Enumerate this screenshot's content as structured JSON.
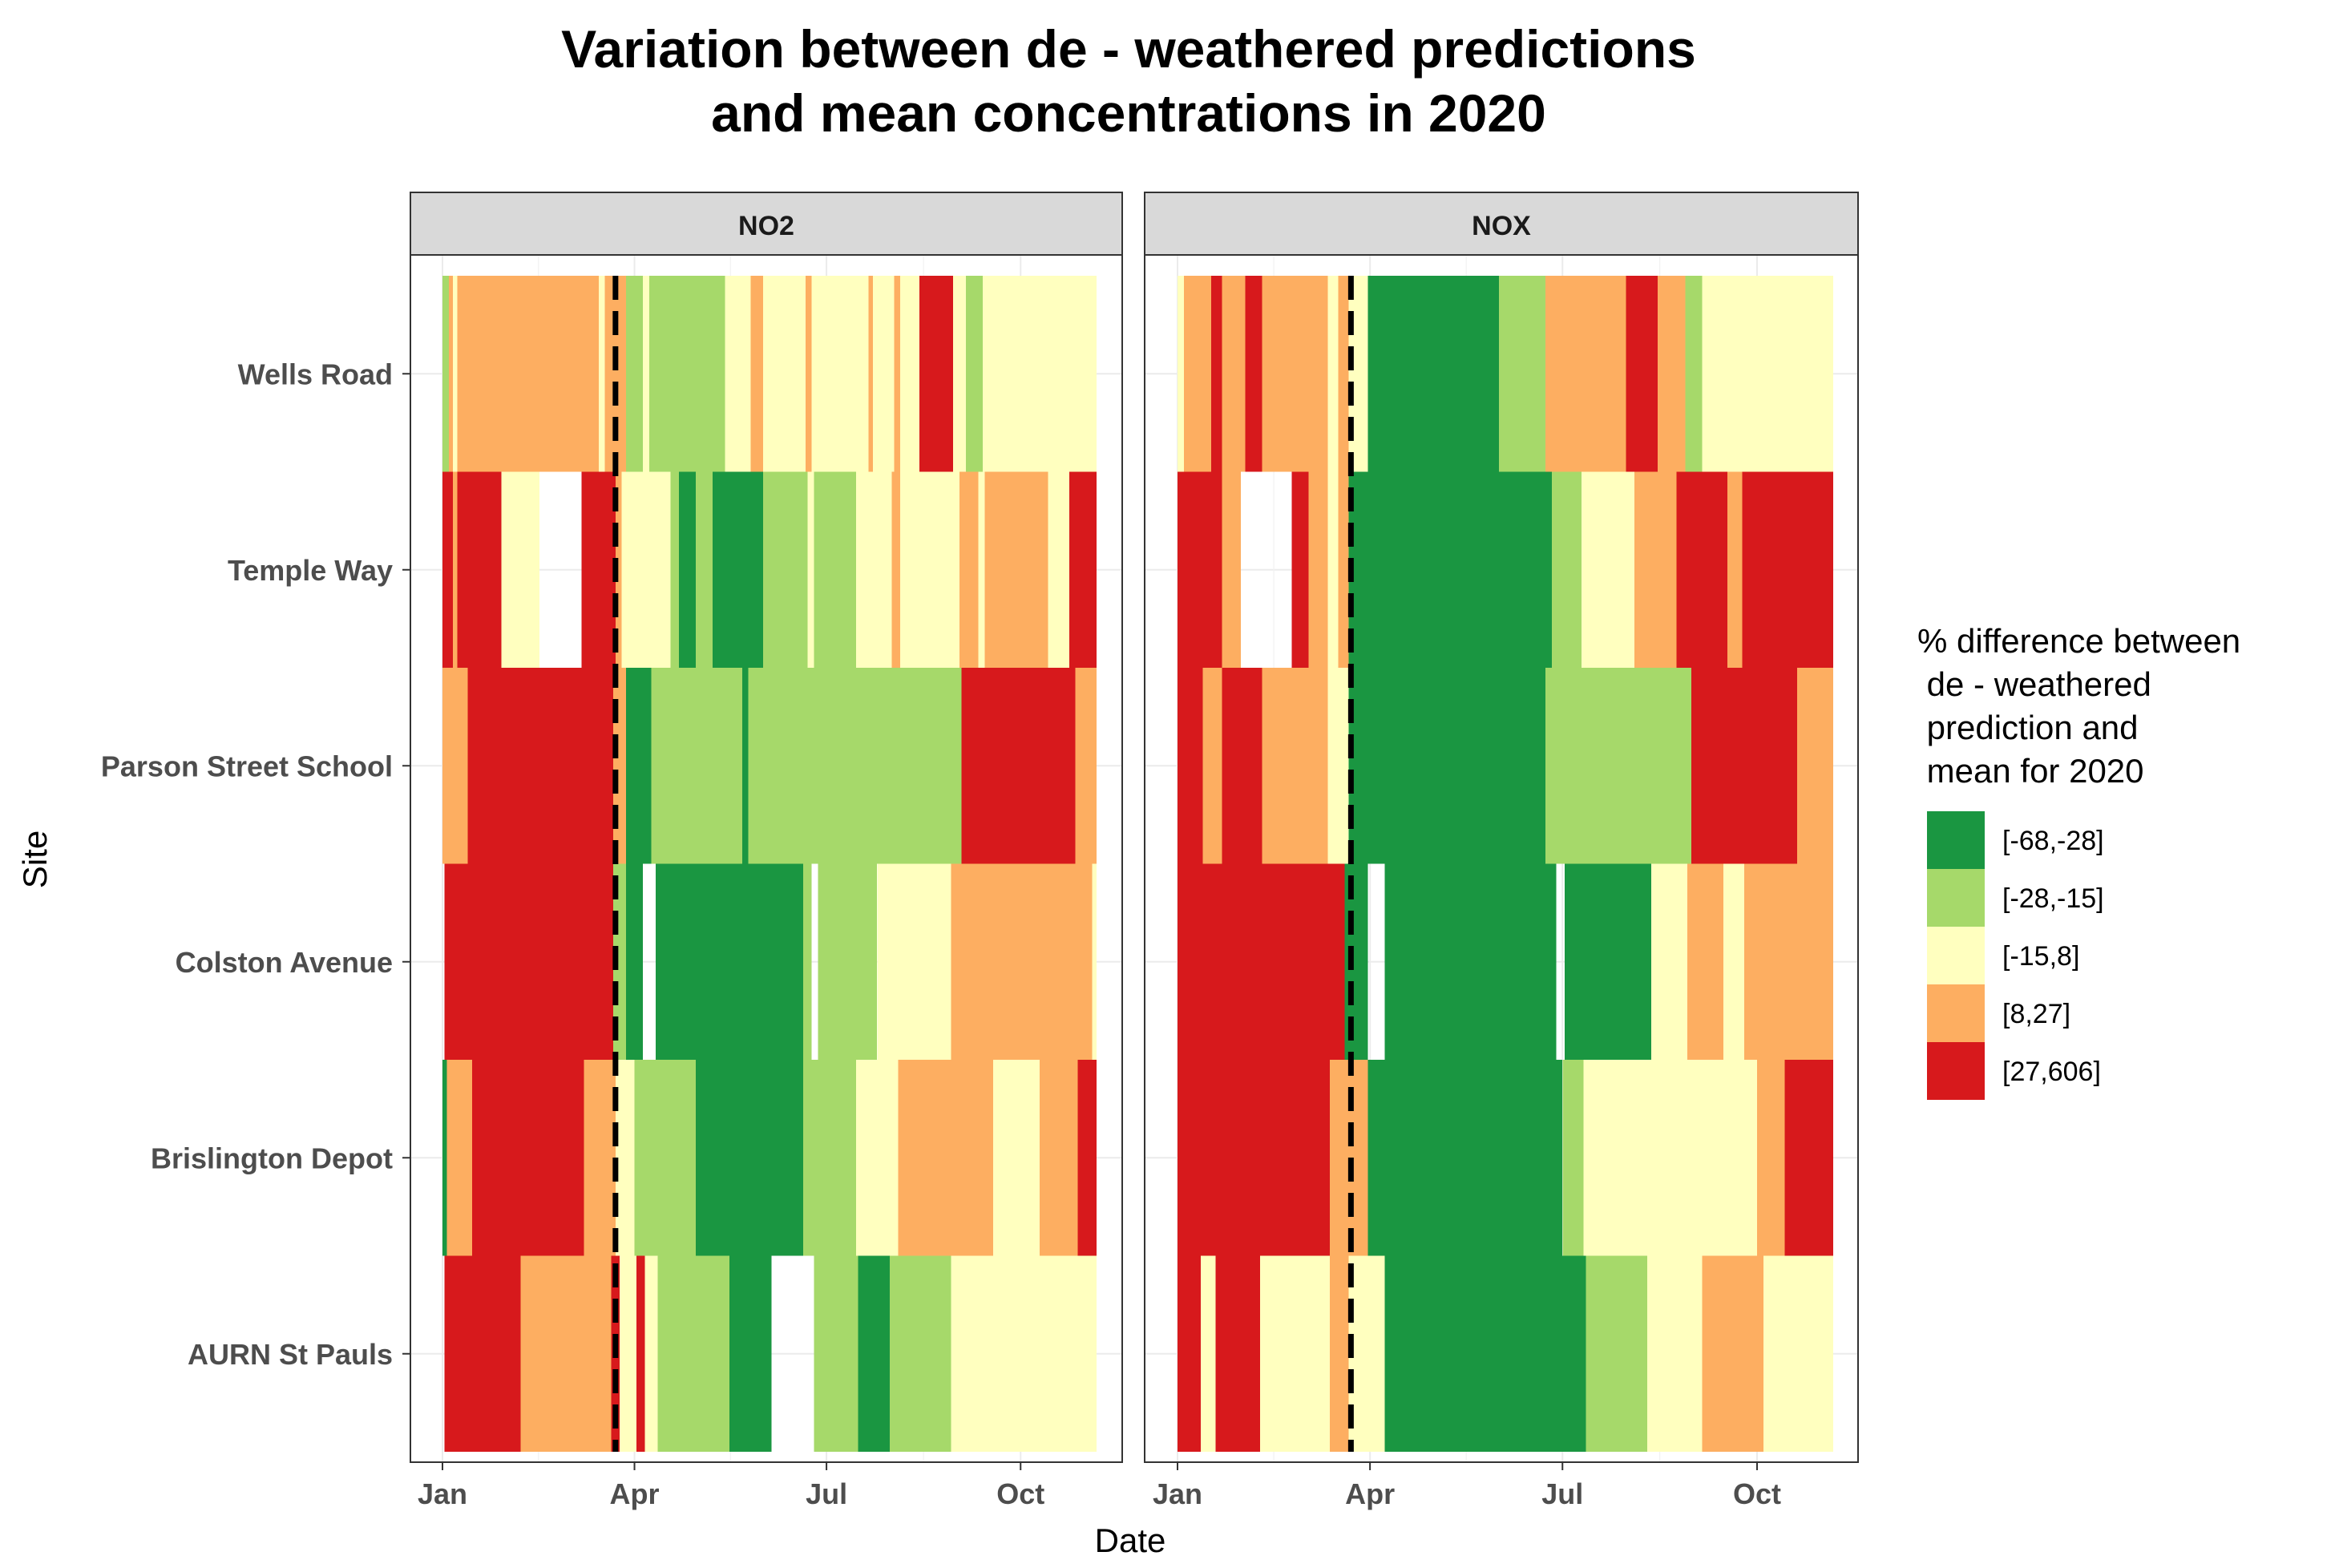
{
  "chart_data": {
    "type": "heatmap",
    "title": [
      "Variation between de - weathered predictions",
      "and mean concentrations in 2020"
    ],
    "xlabel": "Date",
    "ylabel": "Site",
    "x_ticks": [
      "Jan",
      "Apr",
      "Jul",
      "Oct"
    ],
    "x_tick_dates": [
      "2020-01-01",
      "2020-04-01",
      "2020-07-01",
      "2020-10-01"
    ],
    "x_range": [
      "2020-01-01",
      "2020-11-06"
    ],
    "lockdown_line_date": "2020-03-23",
    "sites": [
      "Wells Road",
      "Temple Way",
      "Parson Street School",
      "Colston Avenue",
      "Brislington Depot",
      "AURN St Pauls"
    ],
    "legend": {
      "title": [
        "% difference between",
        " de - weathered",
        " prediction and",
        " mean for 2020"
      ],
      "position": "right",
      "entries": [
        {
          "label": "[-68,-28]",
          "key": "c1",
          "color": "#1a9641"
        },
        {
          "label": "[-28,-15]",
          "key": "c2",
          "color": "#a6d96a"
        },
        {
          "label": "[-15,8]",
          "key": "c3",
          "color": "#ffffbf"
        },
        {
          "label": "[8,27]",
          "key": "c4",
          "color": "#fdae61"
        },
        {
          "label": "[27,606]",
          "key": "c5",
          "color": "#d7191c"
        }
      ]
    },
    "grid": true,
    "panels": [
      {
        "name": "NO2",
        "rows": [
          [
            [
              "2020-01-01",
              "2020-01-04",
              "c2"
            ],
            [
              "2020-01-04",
              "2020-01-06",
              "c4"
            ],
            [
              "2020-01-06",
              "2020-01-08",
              "c3"
            ],
            [
              "2020-01-08",
              "2020-01-13",
              "c4"
            ],
            [
              "2020-01-13",
              "2020-03-15",
              "c4"
            ],
            [
              "2020-03-15",
              "2020-03-18",
              "c3"
            ],
            [
              "2020-03-18",
              "2020-03-28",
              "c4"
            ],
            [
              "2020-03-28",
              "2020-04-05",
              "c2"
            ],
            [
              "2020-04-05",
              "2020-04-08",
              "c3"
            ],
            [
              "2020-04-08",
              "2020-05-14",
              "c2"
            ],
            [
              "2020-05-14",
              "2020-05-26",
              "c3"
            ],
            [
              "2020-05-26",
              "2020-06-01",
              "c4"
            ],
            [
              "2020-06-01",
              "2020-06-04",
              "c3"
            ],
            [
              "2020-06-04",
              "2020-06-21",
              "c3"
            ],
            [
              "2020-06-21",
              "2020-06-24",
              "c4"
            ],
            [
              "2020-06-24",
              "2020-07-21",
              "c3"
            ],
            [
              "2020-07-21",
              "2020-07-23",
              "c4"
            ],
            [
              "2020-07-23",
              "2020-08-02",
              "c3"
            ],
            [
              "2020-08-02",
              "2020-08-05",
              "c4"
            ],
            [
              "2020-08-05",
              "2020-08-14",
              "c3"
            ],
            [
              "2020-08-14",
              "2020-08-30",
              "c5"
            ],
            [
              "2020-08-30",
              "2020-09-05",
              "c3"
            ],
            [
              "2020-09-05",
              "2020-09-13",
              "c2"
            ],
            [
              "2020-09-13",
              "2020-11-06",
              "c3"
            ]
          ],
          [
            [
              "2020-01-01",
              "2020-01-06",
              "c5"
            ],
            [
              "2020-01-06",
              "2020-01-08",
              "c4"
            ],
            [
              "2020-01-08",
              "2020-01-29",
              "c5"
            ],
            [
              "2020-01-29",
              "2020-02-16",
              "c3"
            ],
            [
              "2020-02-16",
              "2020-03-07",
              "none"
            ],
            [
              "2020-03-07",
              "2020-03-23",
              "c5"
            ],
            [
              "2020-03-23",
              "2020-03-26",
              "c4"
            ],
            [
              "2020-03-26",
              "2020-04-18",
              "c3"
            ],
            [
              "2020-04-18",
              "2020-04-22",
              "c2"
            ],
            [
              "2020-04-22",
              "2020-04-30",
              "c1"
            ],
            [
              "2020-04-30",
              "2020-05-08",
              "c2"
            ],
            [
              "2020-05-08",
              "2020-05-22",
              "c1"
            ],
            [
              "2020-05-22",
              "2020-06-01",
              "c1"
            ],
            [
              "2020-06-01",
              "2020-06-22",
              "c2"
            ],
            [
              "2020-06-22",
              "2020-06-25",
              "c3"
            ],
            [
              "2020-06-25",
              "2020-07-15",
              "c2"
            ],
            [
              "2020-07-15",
              "2020-08-01",
              "c3"
            ],
            [
              "2020-08-01",
              "2020-08-05",
              "c4"
            ],
            [
              "2020-08-05",
              "2020-09-02",
              "c3"
            ],
            [
              "2020-09-02",
              "2020-09-11",
              "c4"
            ],
            [
              "2020-09-11",
              "2020-09-14",
              "c3"
            ],
            [
              "2020-09-14",
              "2020-10-14",
              "c4"
            ],
            [
              "2020-10-14",
              "2020-10-24",
              "c3"
            ],
            [
              "2020-10-24",
              "2020-11-06",
              "c5"
            ]
          ],
          [
            [
              "2020-01-01",
              "2020-01-13",
              "c4"
            ],
            [
              "2020-01-13",
              "2020-03-22",
              "c5"
            ],
            [
              "2020-03-22",
              "2020-03-28",
              "c4"
            ],
            [
              "2020-03-28",
              "2020-04-09",
              "c1"
            ],
            [
              "2020-04-09",
              "2020-05-22",
              "c2"
            ],
            [
              "2020-05-22",
              "2020-05-25",
              "c1"
            ],
            [
              "2020-05-25",
              "2020-08-29",
              "c2"
            ],
            [
              "2020-08-29",
              "2020-09-03",
              "c2"
            ],
            [
              "2020-09-03",
              "2020-10-06",
              "c5"
            ],
            [
              "2020-10-06",
              "2020-10-27",
              "c5"
            ],
            [
              "2020-10-27",
              "2020-11-06",
              "c4"
            ]
          ],
          [
            [
              "2020-01-02",
              "2020-03-22",
              "c5"
            ],
            [
              "2020-03-22",
              "2020-03-28",
              "c2"
            ],
            [
              "2020-03-28",
              "2020-04-05",
              "c1"
            ],
            [
              "2020-04-05",
              "2020-04-11",
              "none"
            ],
            [
              "2020-04-11",
              "2020-06-20",
              "c1"
            ],
            [
              "2020-06-20",
              "2020-06-24",
              "c2"
            ],
            [
              "2020-06-24",
              "2020-06-27",
              "none"
            ],
            [
              "2020-06-27",
              "2020-07-25",
              "c2"
            ],
            [
              "2020-07-25",
              "2020-08-29",
              "c3"
            ],
            [
              "2020-08-29",
              "2020-11-04",
              "c4"
            ],
            [
              "2020-11-04",
              "2020-11-06",
              "c3"
            ]
          ],
          [
            [
              "2020-01-01",
              "2020-01-03",
              "c1"
            ],
            [
              "2020-01-03",
              "2020-01-15",
              "c4"
            ],
            [
              "2020-01-15",
              "2020-03-08",
              "c5"
            ],
            [
              "2020-03-08",
              "2020-03-23",
              "c4"
            ],
            [
              "2020-03-23",
              "2020-04-01",
              "c3"
            ],
            [
              "2020-04-01",
              "2020-04-30",
              "c2"
            ],
            [
              "2020-04-30",
              "2020-06-20",
              "c1"
            ],
            [
              "2020-06-20",
              "2020-06-30",
              "c2"
            ],
            [
              "2020-06-30",
              "2020-07-15",
              "c2"
            ],
            [
              "2020-07-15",
              "2020-08-04",
              "c3"
            ],
            [
              "2020-08-04",
              "2020-09-18",
              "c4"
            ],
            [
              "2020-09-18",
              "2020-10-10",
              "c3"
            ],
            [
              "2020-10-10",
              "2020-10-28",
              "c4"
            ],
            [
              "2020-10-28",
              "2020-11-06",
              "c5"
            ]
          ],
          [
            [
              "2020-01-02",
              "2020-02-07",
              "c5"
            ],
            [
              "2020-02-07",
              "2020-03-21",
              "c4"
            ],
            [
              "2020-03-21",
              "2020-03-25",
              "c5"
            ],
            [
              "2020-03-25",
              "2020-04-02",
              "c3"
            ],
            [
              "2020-04-02",
              "2020-04-06",
              "c5"
            ],
            [
              "2020-04-06",
              "2020-04-12",
              "c3"
            ],
            [
              "2020-04-12",
              "2020-05-16",
              "c2"
            ],
            [
              "2020-05-16",
              "2020-06-05",
              "c1"
            ],
            [
              "2020-06-05",
              "2020-06-25",
              "none"
            ],
            [
              "2020-06-25",
              "2020-07-16",
              "c2"
            ],
            [
              "2020-07-16",
              "2020-07-31",
              "c1"
            ],
            [
              "2020-07-31",
              "2020-08-29",
              "c2"
            ],
            [
              "2020-08-29",
              "2020-09-10",
              "c3"
            ],
            [
              "2020-09-10",
              "2020-11-06",
              "c3"
            ]
          ]
        ]
      },
      {
        "name": "NOX",
        "rows": [
          [
            [
              "2020-01-01",
              "2020-01-04",
              "c3"
            ],
            [
              "2020-01-04",
              "2020-01-17",
              "c4"
            ],
            [
              "2020-01-17",
              "2020-01-22",
              "c5"
            ],
            [
              "2020-01-22",
              "2020-02-02",
              "c4"
            ],
            [
              "2020-02-02",
              "2020-02-10",
              "c5"
            ],
            [
              "2020-02-10",
              "2020-02-17",
              "c4"
            ],
            [
              "2020-02-17",
              "2020-03-12",
              "c4"
            ],
            [
              "2020-03-12",
              "2020-03-17",
              "c3"
            ],
            [
              "2020-03-17",
              "2020-03-22",
              "c4"
            ],
            [
              "2020-03-22",
              "2020-03-31",
              "c3"
            ],
            [
              "2020-03-31",
              "2020-06-01",
              "c1"
            ],
            [
              "2020-06-01",
              "2020-06-08",
              "c2"
            ],
            [
              "2020-06-08",
              "2020-06-23",
              "c2"
            ],
            [
              "2020-06-23",
              "2020-07-31",
              "c4"
            ],
            [
              "2020-07-31",
              "2020-08-15",
              "c5"
            ],
            [
              "2020-08-15",
              "2020-08-28",
              "c4"
            ],
            [
              "2020-08-28",
              "2020-09-05",
              "c2"
            ],
            [
              "2020-09-05",
              "2020-11-06",
              "c3"
            ]
          ],
          [
            [
              "2020-01-01",
              "2020-01-22",
              "c5"
            ],
            [
              "2020-01-22",
              "2020-01-31",
              "c4"
            ],
            [
              "2020-01-31",
              "2020-02-24",
              "none"
            ],
            [
              "2020-02-24",
              "2020-03-03",
              "c5"
            ],
            [
              "2020-03-03",
              "2020-03-12",
              "c4"
            ],
            [
              "2020-03-12",
              "2020-03-17",
              "c3"
            ],
            [
              "2020-03-17",
              "2020-03-22",
              "c4"
            ],
            [
              "2020-03-22",
              "2020-06-26",
              "c1"
            ],
            [
              "2020-06-26",
              "2020-07-10",
              "c2"
            ],
            [
              "2020-07-10",
              "2020-08-04",
              "c3"
            ],
            [
              "2020-08-04",
              "2020-08-24",
              "c4"
            ],
            [
              "2020-08-24",
              "2020-09-17",
              "c5"
            ],
            [
              "2020-09-17",
              "2020-09-24",
              "c4"
            ],
            [
              "2020-09-24",
              "2020-11-06",
              "c5"
            ]
          ],
          [
            [
              "2020-01-01",
              "2020-01-13",
              "c5"
            ],
            [
              "2020-01-13",
              "2020-01-22",
              "c4"
            ],
            [
              "2020-01-22",
              "2020-02-10",
              "c5"
            ],
            [
              "2020-02-10",
              "2020-03-12",
              "c4"
            ],
            [
              "2020-03-12",
              "2020-03-22",
              "c3"
            ],
            [
              "2020-03-22",
              "2020-06-23",
              "c1"
            ],
            [
              "2020-06-23",
              "2020-07-01",
              "c2"
            ],
            [
              "2020-07-01",
              "2020-08-31",
              "c2"
            ],
            [
              "2020-08-31",
              "2020-10-20",
              "c5"
            ],
            [
              "2020-10-20",
              "2020-11-06",
              "c4"
            ]
          ],
          [
            [
              "2020-01-01",
              "2020-03-20",
              "c5"
            ],
            [
              "2020-03-20",
              "2020-03-31",
              "c1"
            ],
            [
              "2020-03-31",
              "2020-04-08",
              "none"
            ],
            [
              "2020-04-08",
              "2020-06-28",
              "c1"
            ],
            [
              "2020-06-28",
              "2020-07-02",
              "none"
            ],
            [
              "2020-07-02",
              "2020-08-12",
              "c1"
            ],
            [
              "2020-08-12",
              "2020-08-29",
              "c3"
            ],
            [
              "2020-08-29",
              "2020-09-15",
              "c4"
            ],
            [
              "2020-09-15",
              "2020-09-25",
              "c3"
            ],
            [
              "2020-09-25",
              "2020-11-06",
              "c4"
            ]
          ],
          [
            [
              "2020-01-01",
              "2020-01-31",
              "c5"
            ],
            [
              "2020-01-31",
              "2020-03-13",
              "c5"
            ],
            [
              "2020-03-13",
              "2020-03-31",
              "c4"
            ],
            [
              "2020-03-31",
              "2020-07-01",
              "c1"
            ],
            [
              "2020-07-01",
              "2020-07-11",
              "c2"
            ],
            [
              "2020-07-11",
              "2020-08-11",
              "c3"
            ],
            [
              "2020-08-11",
              "2020-09-02",
              "c3"
            ],
            [
              "2020-09-02",
              "2020-10-01",
              "c3"
            ],
            [
              "2020-10-01",
              "2020-10-14",
              "c4"
            ],
            [
              "2020-10-14",
              "2020-10-22",
              "c5"
            ],
            [
              "2020-10-22",
              "2020-11-06",
              "c5"
            ]
          ],
          [
            [
              "2020-01-01",
              "2020-01-12",
              "c5"
            ],
            [
              "2020-01-12",
              "2020-01-19",
              "c3"
            ],
            [
              "2020-01-19",
              "2020-02-09",
              "c5"
            ],
            [
              "2020-02-09",
              "2020-03-13",
              "c3"
            ],
            [
              "2020-03-13",
              "2020-03-22",
              "c4"
            ],
            [
              "2020-03-22",
              "2020-04-08",
              "c3"
            ],
            [
              "2020-04-08",
              "2020-06-20",
              "c1"
            ],
            [
              "2020-06-20",
              "2020-07-12",
              "c1"
            ],
            [
              "2020-07-12",
              "2020-08-10",
              "c2"
            ],
            [
              "2020-08-10",
              "2020-09-05",
              "c3"
            ],
            [
              "2020-09-05",
              "2020-10-04",
              "c4"
            ],
            [
              "2020-10-04",
              "2020-11-06",
              "c3"
            ]
          ]
        ]
      }
    ]
  }
}
